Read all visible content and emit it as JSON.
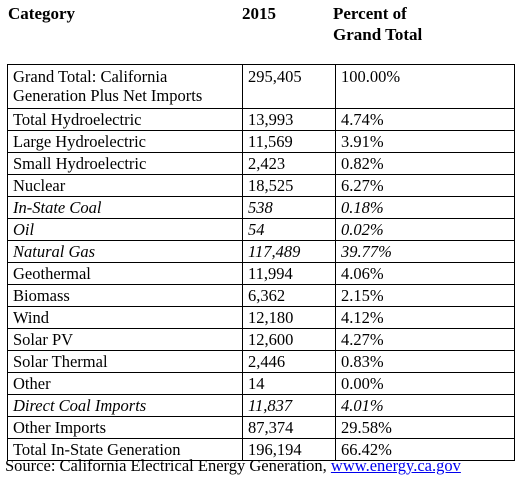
{
  "header": {
    "category": "Category",
    "year": "2015",
    "percent": "Percent of\nGrand Total"
  },
  "rows": [
    {
      "category": "Grand Total: California\nGeneration Plus Net Imports",
      "value": "295,405",
      "percent": "100.00%",
      "italic": false
    },
    {
      "category": "Total Hydroelectric",
      "value": "13,993",
      "percent": "4.74%",
      "italic": false
    },
    {
      "category": "Large Hydroelectric",
      "value": "11,569",
      "percent": "3.91%",
      "italic": false
    },
    {
      "category": "Small Hydroelectric",
      "value": "2,423",
      "percent": "0.82%",
      "italic": false
    },
    {
      "category": "Nuclear",
      "value": "18,525",
      "percent": "6.27%",
      "italic": false
    },
    {
      "category": "In-State Coal",
      "value": "538",
      "percent": "0.18%",
      "italic": true
    },
    {
      "category": "Oil",
      "value": "54",
      "percent": "0.02%",
      "italic": true
    },
    {
      "category": "Natural Gas",
      "value": "117,489",
      "percent": "39.77%",
      "italic": true
    },
    {
      "category": "Geothermal",
      "value": "11,994",
      "percent": "4.06%",
      "italic": false
    },
    {
      "category": "Biomass",
      "value": "6,362",
      "percent": "2.15%",
      "italic": false
    },
    {
      "category": "Wind",
      "value": "12,180",
      "percent": "4.12%",
      "italic": false
    },
    {
      "category": "Solar PV",
      "value": "12,600",
      "percent": "4.27%",
      "italic": false
    },
    {
      "category": "Solar Thermal",
      "value": "2,446",
      "percent": "0.83%",
      "italic": false
    },
    {
      "category": "Other",
      "value": "14",
      "percent": "0.00%",
      "italic": false
    },
    {
      "category": "Direct Coal Imports",
      "value": "11,837",
      "percent": "4.01%",
      "italic": true
    },
    {
      "category": "Other Imports",
      "value": "87,374",
      "percent": "29.58%",
      "italic": false
    },
    {
      "category": "Total In-State Generation",
      "value": "196,194",
      "percent": "66.42%",
      "italic": false
    }
  ],
  "source": {
    "prefix": "Source: California Electrical Energy Generation, ",
    "link_text": "www.energy.ca.gov",
    "link_color": "#0000ee"
  }
}
